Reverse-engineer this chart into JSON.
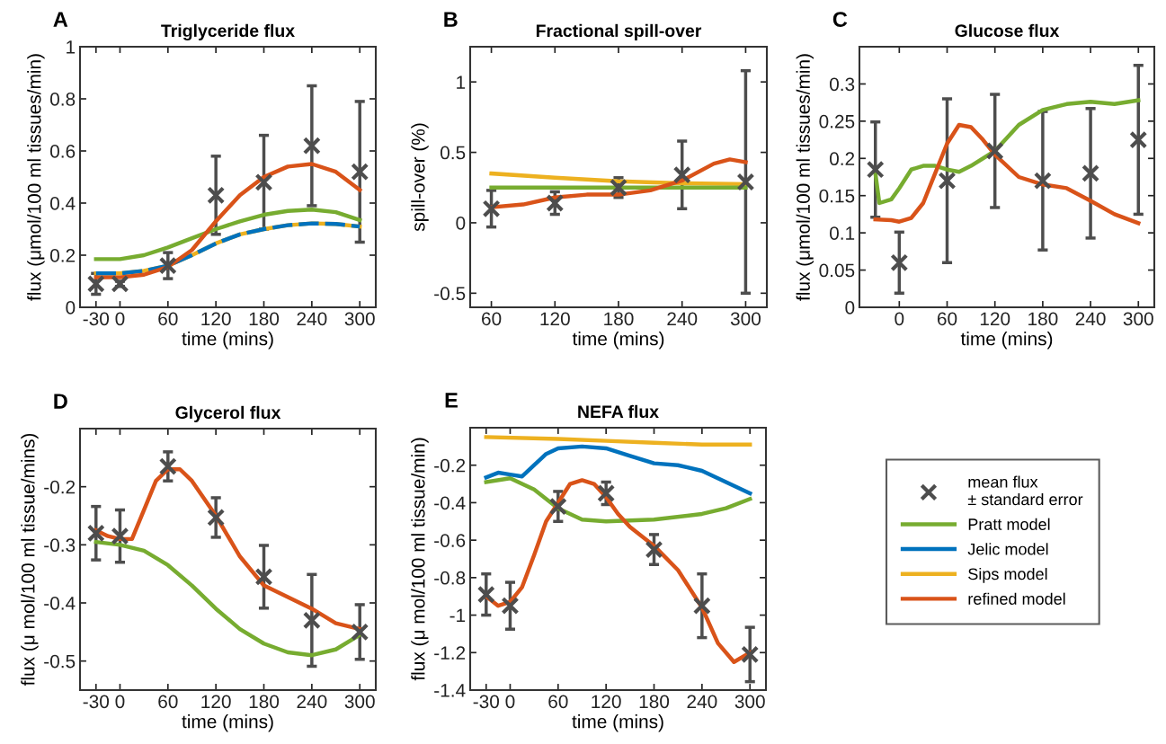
{
  "chart_data": [
    {
      "type": "line",
      "title": "Triglyceride flux",
      "xlabel": "time (mins)",
      "ylabel": "flux (μmol/100 ml tissues/min)",
      "annotations": [
        "A"
      ],
      "xlim": [
        -50,
        320
      ],
      "xticks": [
        -30,
        0,
        60,
        120,
        180,
        240,
        300
      ],
      "ylim": [
        0,
        1
      ],
      "yticks": [
        0,
        0.2,
        0.4,
        0.6,
        0.8,
        1
      ],
      "series": [
        {
          "color": "#77ac30",
          "x": [
            -30,
            0,
            30,
            60,
            90,
            120,
            150,
            180,
            210,
            240,
            270,
            300
          ],
          "values": [
            0.185,
            0.185,
            0.2,
            0.23,
            0.265,
            0.3,
            0.33,
            0.355,
            0.37,
            0.375,
            0.365,
            0.335
          ]
        },
        {
          "color": "#edb120",
          "x": [
            -30,
            0,
            30,
            60,
            90,
            120,
            150,
            180,
            210,
            240,
            270,
            300
          ],
          "values": [
            0.13,
            0.13,
            0.14,
            0.16,
            0.2,
            0.245,
            0.28,
            0.3,
            0.315,
            0.322,
            0.32,
            0.31
          ]
        },
        {
          "color": "#0072bd",
          "line_style": "dashed",
          "x": [
            -30,
            0,
            30,
            60,
            90,
            120,
            150,
            180,
            210,
            240,
            270,
            300
          ],
          "values": [
            0.13,
            0.13,
            0.14,
            0.16,
            0.2,
            0.245,
            0.28,
            0.3,
            0.315,
            0.322,
            0.32,
            0.31
          ]
        },
        {
          "color": "#d95319",
          "x": [
            -30,
            0,
            30,
            60,
            90,
            120,
            150,
            180,
            210,
            240,
            270,
            300
          ],
          "values": [
            0.115,
            0.115,
            0.125,
            0.155,
            0.22,
            0.33,
            0.43,
            0.5,
            0.54,
            0.55,
            0.52,
            0.45
          ]
        },
        {
          "type": "scatter",
          "color": "#4d4d4d",
          "marker": "cross",
          "x": [
            -30,
            0,
            60,
            120,
            180,
            240,
            300
          ],
          "values": [
            0.09,
            0.09,
            0.16,
            0.43,
            0.48,
            0.62,
            0.52
          ],
          "errors": [
            0.04,
            0.01,
            0.05,
            0.15,
            0.18,
            0.23,
            0.27
          ]
        }
      ]
    },
    {
      "type": "line",
      "title": "Fractional spill-over",
      "xlabel": "time (mins)",
      "ylabel": "spill-over (%)",
      "annotations": [
        "B"
      ],
      "xlim": [
        40,
        320
      ],
      "xticks": [
        60,
        120,
        180,
        240,
        300
      ],
      "ylim": [
        -0.6,
        1.25
      ],
      "yticks": [
        -0.5,
        0,
        0.5,
        1
      ],
      "series": [
        {
          "color": "#edb120",
          "x": [
            60,
            120,
            180,
            240,
            300
          ],
          "values": [
            0.35,
            0.32,
            0.295,
            0.28,
            0.275
          ]
        },
        {
          "color": "#77ac30",
          "x": [
            60,
            120,
            180,
            240,
            300
          ],
          "values": [
            0.25,
            0.25,
            0.25,
            0.25,
            0.25
          ]
        },
        {
          "color": "#d95319",
          "x": [
            60,
            90,
            120,
            150,
            180,
            210,
            240,
            270,
            285,
            300
          ],
          "values": [
            0.11,
            0.13,
            0.18,
            0.2,
            0.2,
            0.23,
            0.3,
            0.42,
            0.45,
            0.43
          ]
        },
        {
          "type": "scatter",
          "color": "#4d4d4d",
          "marker": "cross",
          "x": [
            60,
            120,
            180,
            240,
            300
          ],
          "values": [
            0.1,
            0.14,
            0.25,
            0.34,
            0.29
          ],
          "errors": [
            0.13,
            0.08,
            0.07,
            0.24,
            0.79
          ]
        }
      ]
    },
    {
      "type": "line",
      "title": "Glucose flux",
      "xlabel": "time (mins)",
      "ylabel": "flux (μmol/100 ml tissues/min)",
      "annotations": [
        "C"
      ],
      "xlim": [
        -50,
        320
      ],
      "xticks": [
        0,
        60,
        120,
        180,
        240,
        300
      ],
      "ylim": [
        0,
        0.35
      ],
      "yticks": [
        0,
        0.05,
        0.1,
        0.15,
        0.2,
        0.25,
        0.3
      ],
      "series": [
        {
          "color": "#77ac30",
          "x": [
            -30,
            -25,
            -10,
            0,
            15,
            30,
            45,
            60,
            75,
            90,
            120,
            150,
            180,
            210,
            240,
            270,
            300
          ],
          "values": [
            0.18,
            0.14,
            0.145,
            0.16,
            0.185,
            0.19,
            0.19,
            0.185,
            0.182,
            0.19,
            0.21,
            0.245,
            0.265,
            0.273,
            0.276,
            0.273,
            0.278
          ]
        },
        {
          "color": "#d95319",
          "x": [
            -30,
            -10,
            0,
            15,
            30,
            45,
            60,
            75,
            90,
            105,
            120,
            150,
            180,
            210,
            240,
            270,
            300
          ],
          "values": [
            0.118,
            0.117,
            0.115,
            0.12,
            0.14,
            0.18,
            0.22,
            0.245,
            0.242,
            0.225,
            0.205,
            0.175,
            0.165,
            0.16,
            0.143,
            0.125,
            0.113
          ]
        },
        {
          "type": "scatter",
          "color": "#4d4d4d",
          "marker": "cross",
          "x": [
            -30,
            0,
            60,
            120,
            180,
            240,
            300
          ],
          "values": [
            0.185,
            0.06,
            0.17,
            0.21,
            0.17,
            0.18,
            0.225
          ],
          "errors": [
            0.064,
            0.041,
            0.11,
            0.076,
            0.093,
            0.087,
            0.1
          ]
        }
      ]
    },
    {
      "type": "line",
      "title": "Glycerol flux",
      "xlabel": "time (mins)",
      "ylabel": "flux (μ mol/100 ml tissue/mins)",
      "annotations": [
        "D"
      ],
      "xlim": [
        -50,
        320
      ],
      "xticks": [
        -30,
        0,
        60,
        120,
        180,
        240,
        300
      ],
      "ylim": [
        -0.55,
        -0.1
      ],
      "yticks": [
        -0.5,
        -0.4,
        -0.3,
        -0.2
      ],
      "series": [
        {
          "color": "#77ac30",
          "x": [
            -30,
            0,
            30,
            60,
            90,
            120,
            150,
            180,
            210,
            240,
            270,
            300
          ],
          "values": [
            -0.295,
            -0.3,
            -0.31,
            -0.335,
            -0.37,
            -0.41,
            -0.445,
            -0.47,
            -0.485,
            -0.49,
            -0.48,
            -0.455
          ]
        },
        {
          "color": "#d95319",
          "x": [
            -30,
            -15,
            0,
            15,
            30,
            45,
            60,
            75,
            90,
            120,
            150,
            180,
            210,
            240,
            270,
            300
          ],
          "values": [
            -0.275,
            -0.285,
            -0.29,
            -0.29,
            -0.24,
            -0.19,
            -0.17,
            -0.17,
            -0.19,
            -0.25,
            -0.32,
            -0.37,
            -0.39,
            -0.41,
            -0.435,
            -0.445
          ]
        },
        {
          "type": "scatter",
          "color": "#4d4d4d",
          "marker": "cross",
          "x": [
            -30,
            0,
            60,
            120,
            180,
            240,
            300
          ],
          "values": [
            -0.28,
            -0.285,
            -0.165,
            -0.253,
            -0.355,
            -0.43,
            -0.45
          ],
          "errors": [
            0.046,
            0.045,
            0.025,
            0.034,
            0.054,
            0.079,
            0.047
          ]
        }
      ]
    },
    {
      "type": "line",
      "title": "NEFA flux",
      "xlabel": "time (mins)",
      "ylabel": "flux (μ mol/100 ml tissue/min)",
      "annotations": [
        "E"
      ],
      "legend": "right",
      "xlim": [
        -50,
        320
      ],
      "xticks": [
        -30,
        0,
        60,
        120,
        180,
        240,
        300
      ],
      "ylim": [
        -1.4,
        0
      ],
      "yticks": [
        -1.4,
        -1.2,
        -1,
        -0.8,
        -0.6,
        -0.4,
        -0.2
      ],
      "series": [
        {
          "type": "scatter",
          "name": "mean flux\n± standard error",
          "color": "#4d4d4d",
          "marker": "cross",
          "x": [
            -30,
            0,
            60,
            120,
            180,
            240,
            300
          ],
          "values": [
            -0.89,
            -0.95,
            -0.42,
            -0.35,
            -0.65,
            -0.95,
            -1.21
          ],
          "errors": [
            0.11,
            0.125,
            0.08,
            0.06,
            0.08,
            0.17,
            0.145
          ]
        },
        {
          "name": "Pratt model",
          "color": "#77ac30",
          "x": [
            -30,
            0,
            30,
            60,
            90,
            120,
            180,
            240,
            270,
            300
          ],
          "values": [
            -0.29,
            -0.27,
            -0.33,
            -0.43,
            -0.49,
            -0.5,
            -0.49,
            -0.46,
            -0.43,
            -0.38
          ]
        },
        {
          "name": "Jelic model",
          "color": "#0072bd",
          "x": [
            -30,
            -15,
            0,
            15,
            30,
            45,
            60,
            90,
            120,
            150,
            180,
            210,
            240,
            270,
            300
          ],
          "values": [
            -0.265,
            -0.24,
            -0.25,
            -0.26,
            -0.2,
            -0.14,
            -0.11,
            -0.1,
            -0.11,
            -0.15,
            -0.19,
            -0.2,
            -0.23,
            -0.29,
            -0.35
          ]
        },
        {
          "name": "Sips model",
          "color": "#edb120",
          "x": [
            -30,
            60,
            120,
            180,
            240,
            300
          ],
          "values": [
            -0.05,
            -0.06,
            -0.07,
            -0.08,
            -0.09,
            -0.09
          ]
        },
        {
          "name": "refined model",
          "color": "#d95319",
          "x": [
            -30,
            -15,
            0,
            15,
            30,
            45,
            60,
            75,
            90,
            105,
            120,
            135,
            150,
            165,
            180,
            210,
            240,
            260,
            280,
            300
          ],
          "values": [
            -0.9,
            -0.95,
            -0.93,
            -0.85,
            -0.68,
            -0.5,
            -0.4,
            -0.3,
            -0.28,
            -0.3,
            -0.37,
            -0.46,
            -0.53,
            -0.58,
            -0.63,
            -0.76,
            -0.96,
            -1.15,
            -1.25,
            -1.2
          ]
        }
      ]
    }
  ]
}
